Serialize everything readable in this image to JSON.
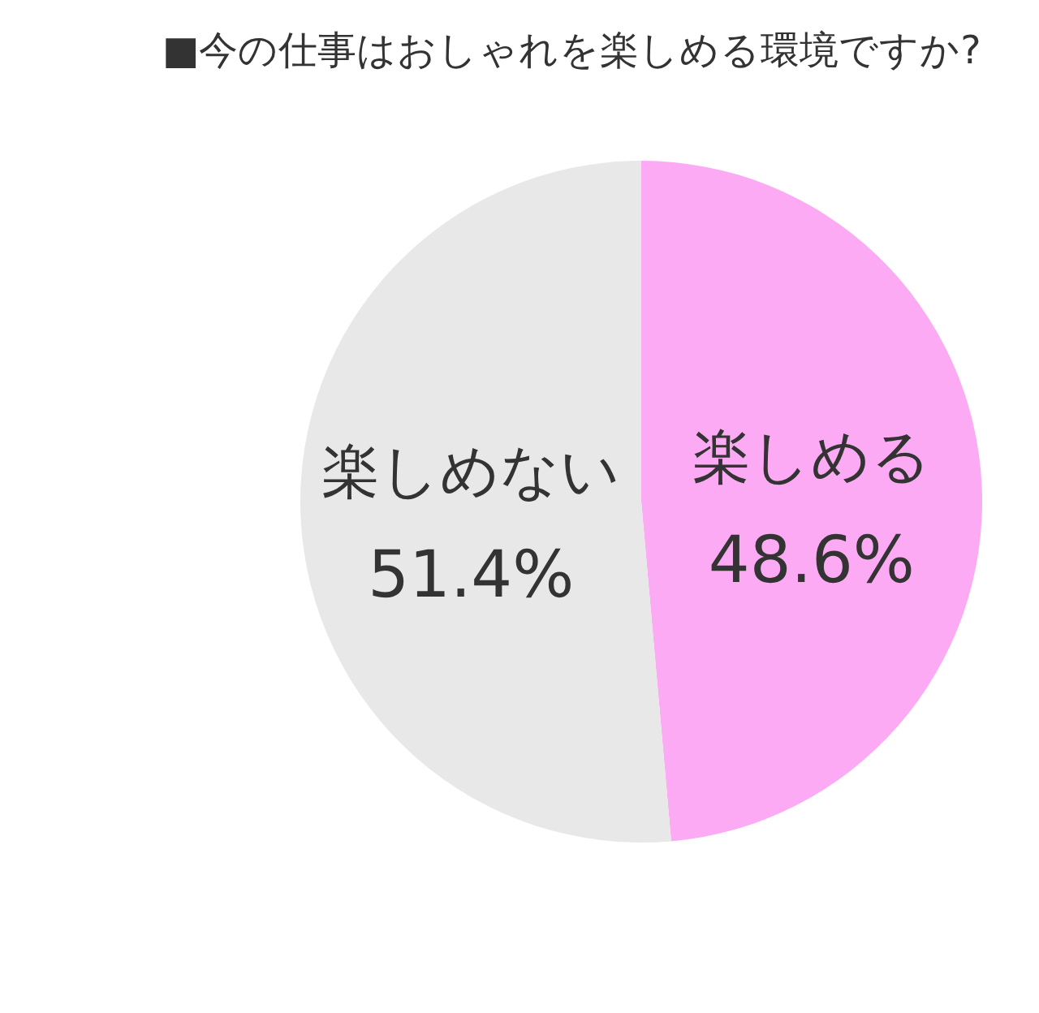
{
  "chart_data": {
    "type": "pie",
    "title": "■今の仕事はおしゃれを楽しめる環境ですか?",
    "categories": [
      "楽しめる",
      "楽しめない"
    ],
    "values": [
      48.6,
      51.4
    ],
    "colors": [
      "#fbaaf3",
      "#e8e8e8"
    ],
    "value_labels": [
      "48.6%",
      "51.4%"
    ],
    "legend": false
  }
}
